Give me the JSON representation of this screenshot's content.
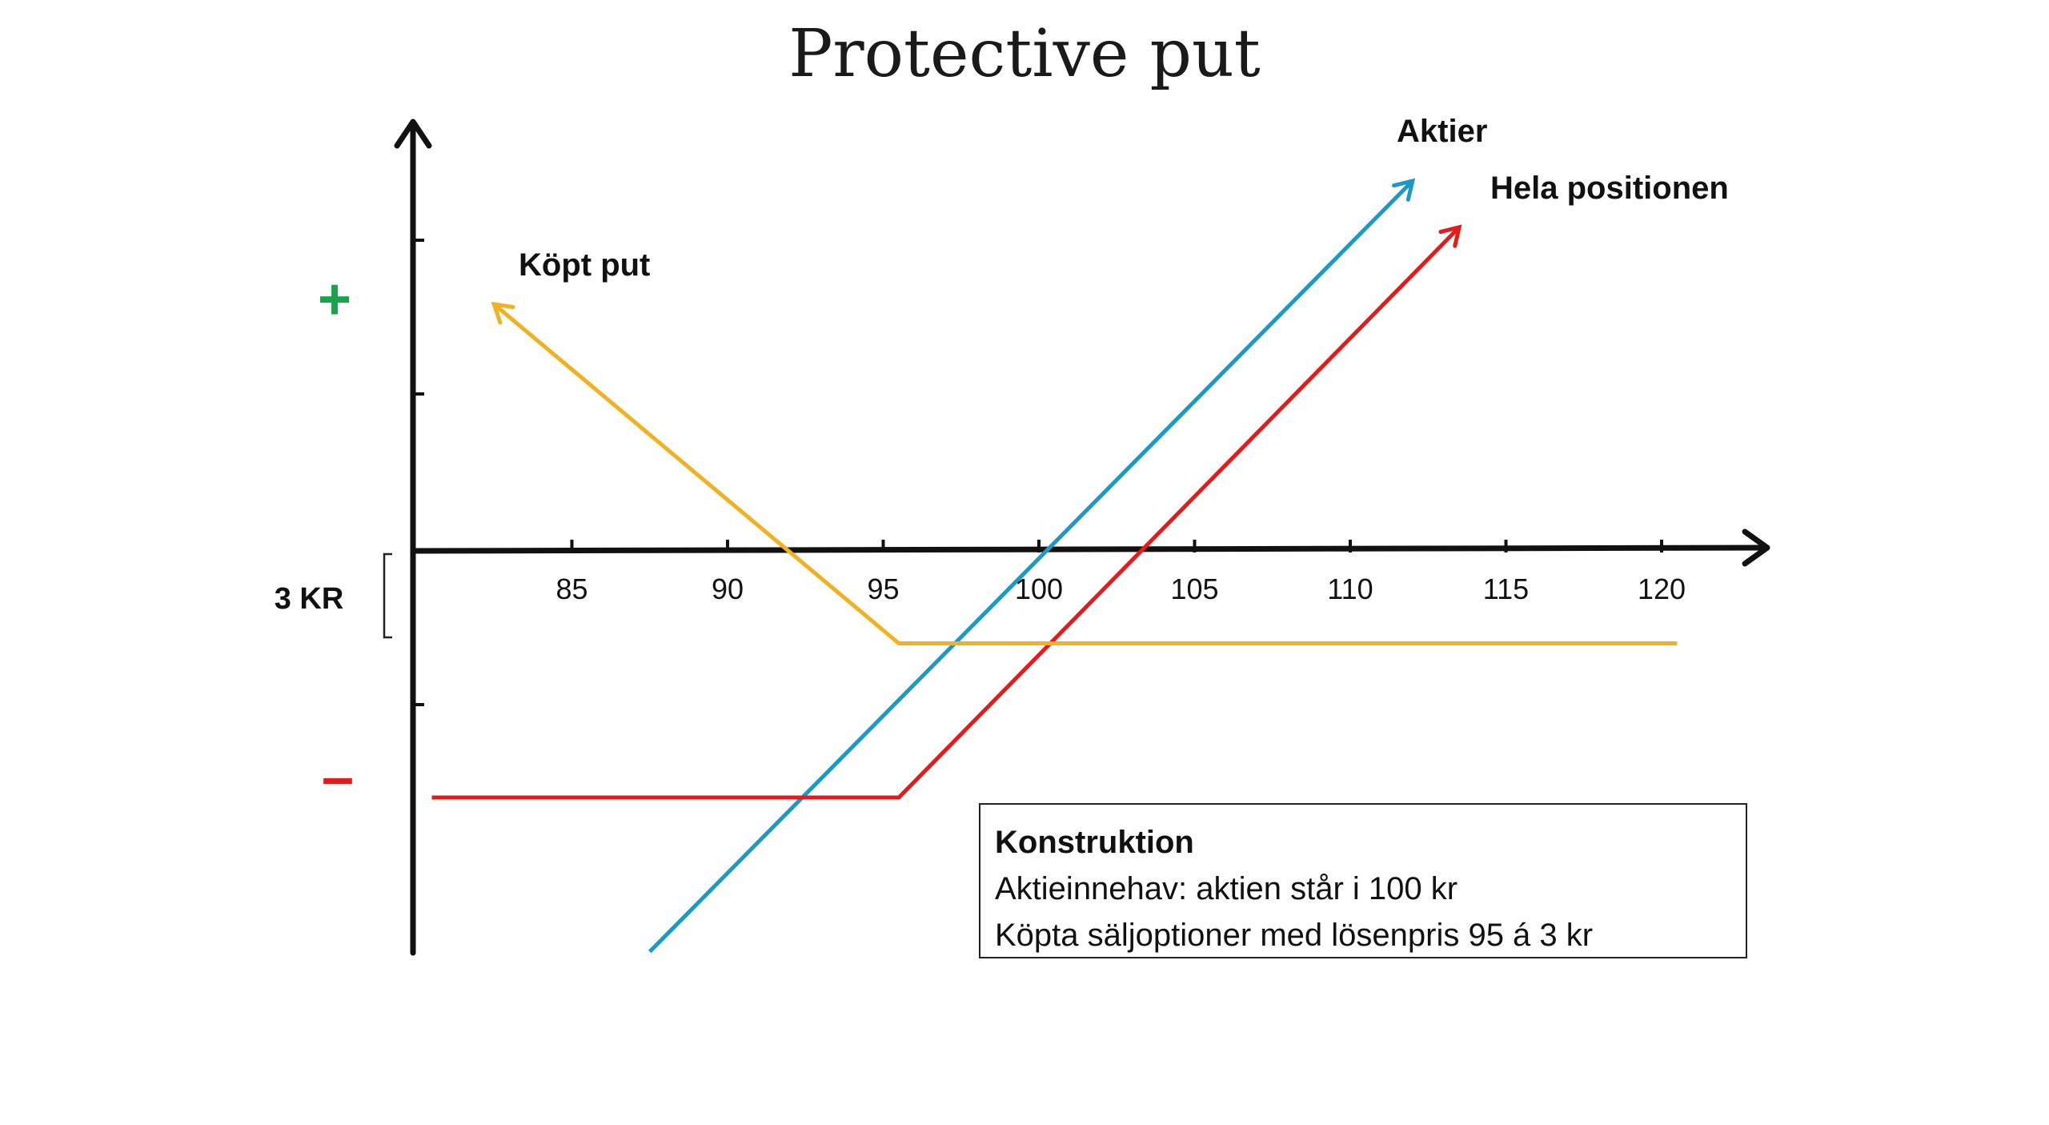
{
  "title": "Protective put",
  "chart_data": {
    "type": "line",
    "xlabel": "",
    "ylabel": "",
    "x_ticks": [
      85,
      90,
      95,
      100,
      105,
      110,
      115,
      120
    ],
    "plus_symbol": "+",
    "minus_symbol": "–",
    "premium_label": "3 KR",
    "series": [
      {
        "name": "Aktier",
        "color": "#1a9ac4",
        "points": [
          [
            87.5,
            -13
          ],
          [
            112,
            12
          ]
        ]
      },
      {
        "name": "Hela positionen",
        "color": "#e31b1b",
        "points": [
          [
            80.5,
            -8
          ],
          [
            95.5,
            -8
          ],
          [
            113.5,
            10.5
          ]
        ]
      },
      {
        "name": "Köpt put",
        "color": "#f2b120",
        "points": [
          [
            82.5,
            8
          ],
          [
            95.5,
            -3
          ],
          [
            120.5,
            -3
          ]
        ]
      }
    ]
  },
  "construction": {
    "heading": "Konstruktion",
    "line1": "Aktieinnehav: aktien står i 100 kr",
    "line2": "Köpta säljoptioner med lösenpris 95 á 3 kr"
  }
}
